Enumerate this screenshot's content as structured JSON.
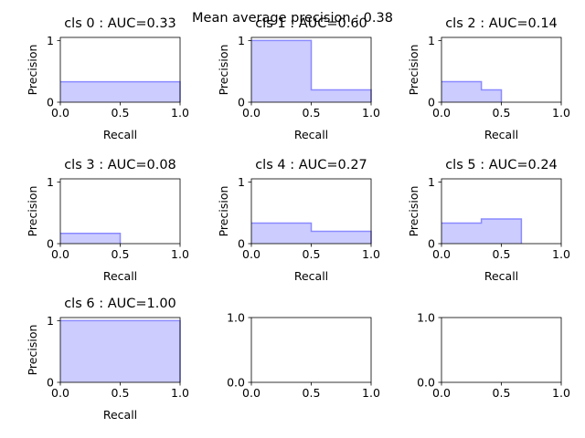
{
  "suptitle": "Mean average precision : 0.38",
  "chart_data": [
    {
      "type": "area",
      "title": "cls 0 : AUC=0.33",
      "xlabel": "Recall",
      "ylabel": "Precision",
      "xlim": [
        0,
        1
      ],
      "ylim": [
        0,
        1.05
      ],
      "xticks": [
        "0.0",
        "0.5",
        "1.0"
      ],
      "yticks": [
        "0",
        "1"
      ],
      "fill_color": "#ccccff",
      "line_color": "#8a8aff",
      "x": [
        0,
        1.0
      ],
      "y": [
        0.33,
        0.33
      ]
    },
    {
      "type": "area",
      "title": "cls 1 : AUC=0.60",
      "xlabel": "Recall",
      "ylabel": "Precision",
      "xlim": [
        0,
        1
      ],
      "ylim": [
        0,
        1.05
      ],
      "xticks": [
        "0.0",
        "0.5",
        "1.0"
      ],
      "yticks": [
        "0",
        "1"
      ],
      "fill_color": "#ccccff",
      "line_color": "#8a8aff",
      "x": [
        0,
        0.5,
        0.5,
        1.0
      ],
      "y": [
        1.0,
        1.0,
        0.2,
        0.2
      ]
    },
    {
      "type": "area",
      "title": "cls 2 : AUC=0.14",
      "xlabel": "Recall",
      "ylabel": "Precision",
      "xlim": [
        0,
        1
      ],
      "ylim": [
        0,
        1.05
      ],
      "xticks": [
        "0.0",
        "0.5",
        "1.0"
      ],
      "yticks": [
        "0",
        "1"
      ],
      "fill_color": "#ccccff",
      "line_color": "#8a8aff",
      "x": [
        0,
        0.333,
        0.333,
        0.5
      ],
      "y": [
        0.333,
        0.333,
        0.2,
        0.2
      ]
    },
    {
      "type": "area",
      "title": "cls 3 : AUC=0.08",
      "xlabel": "Recall",
      "ylabel": "Precision",
      "xlim": [
        0,
        1
      ],
      "ylim": [
        0,
        1.05
      ],
      "xticks": [
        "0.0",
        "0.5",
        "1.0"
      ],
      "yticks": [
        "0",
        "1"
      ],
      "fill_color": "#ccccff",
      "line_color": "#8a8aff",
      "x": [
        0,
        0.5
      ],
      "y": [
        0.167,
        0.167
      ]
    },
    {
      "type": "area",
      "title": "cls 4 : AUC=0.27",
      "xlabel": "Recall",
      "ylabel": "Precision",
      "xlim": [
        0,
        1
      ],
      "ylim": [
        0,
        1.05
      ],
      "xticks": [
        "0.0",
        "0.5",
        "1.0"
      ],
      "yticks": [
        "0",
        "1"
      ],
      "fill_color": "#ccccff",
      "line_color": "#8a8aff",
      "x": [
        0,
        0.5,
        0.5,
        1.0
      ],
      "y": [
        0.333,
        0.333,
        0.2,
        0.2
      ]
    },
    {
      "type": "area",
      "title": "cls 5 : AUC=0.24",
      "xlabel": "Recall",
      "ylabel": "Precision",
      "xlim": [
        0,
        1
      ],
      "ylim": [
        0,
        1.05
      ],
      "xticks": [
        "0.0",
        "0.5",
        "1.0"
      ],
      "yticks": [
        "0",
        "1"
      ],
      "fill_color": "#ccccff",
      "line_color": "#8a8aff",
      "x": [
        0,
        0.333,
        0.333,
        0.667
      ],
      "y": [
        0.333,
        0.333,
        0.4,
        0.4
      ]
    },
    {
      "type": "area",
      "title": "cls 6 : AUC=1.00",
      "xlabel": "Recall",
      "ylabel": "Precision",
      "xlim": [
        0,
        1
      ],
      "ylim": [
        0,
        1.05
      ],
      "xticks": [
        "0.0",
        "0.5",
        "1.0"
      ],
      "yticks": [
        "0",
        "1"
      ],
      "fill_color": "#ccccff",
      "line_color": "#8a8aff",
      "x": [
        0,
        1.0
      ],
      "y": [
        1.0,
        1.0
      ]
    },
    {
      "type": "empty",
      "title": "",
      "xlabel": "",
      "ylabel": "",
      "xlim": [
        0,
        1
      ],
      "ylim": [
        0,
        1
      ],
      "xticks": [
        "0.0",
        "0.5",
        "1.0"
      ],
      "yticks": [
        "0.0",
        "1.0"
      ],
      "x": [],
      "y": []
    },
    {
      "type": "empty",
      "title": "",
      "xlabel": "",
      "ylabel": "",
      "xlim": [
        0,
        1
      ],
      "ylim": [
        0,
        1
      ],
      "xticks": [
        "0.0",
        "0.5",
        "1.0"
      ],
      "yticks": [
        "0.0",
        "1.0"
      ],
      "x": [],
      "y": []
    }
  ]
}
